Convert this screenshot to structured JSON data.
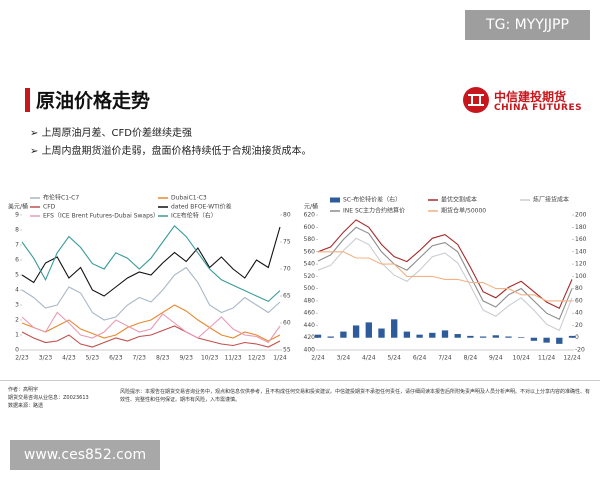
{
  "page": {
    "watermark_top": "TG: MYYJJPP",
    "title": "原油价格走势",
    "logo_cn": "中信建投期货",
    "logo_en": "CHINA FUTURES",
    "bullets": [
      "上周原油月差、CFD价差继续走强",
      "上周内盘期货溢价走弱，盘面价格持续低于合规油接货成本。"
    ],
    "footer_author": "作者：高明宇",
    "footer_license": "期货交易咨询从业信息：Z0023613",
    "footer_source": "数据来源：路透",
    "risk": "风险提示：本报告在期货交易咨询业务中，观点和信息仅供参考，且不构成任何交易和投资建议。中信建投期货不承担任何责任，请仔细阅读本报告后所附免责声明及人员分析声明。不对以上分享内容的准确性、有效性、完整性和任何保证。期市有风险，入市需谨慎。",
    "watermark_bottom": "www.ces852.com"
  },
  "chart_data": [
    {
      "type": "line",
      "ylabel": "美元/桶",
      "categories": [
        "2/23",
        null,
        "3/23",
        null,
        "4/23",
        null,
        "5/23",
        null,
        "6/23",
        null,
        "7/23",
        null,
        "8/23",
        null,
        "9/23",
        null,
        "10/23",
        null,
        "11/23",
        null,
        "12/23",
        null,
        "1/24"
      ],
      "ylim": [
        0,
        9
      ],
      "yticks": [
        0,
        1,
        2,
        3,
        4,
        5,
        6,
        7,
        8,
        9
      ],
      "y2lim": [
        55,
        80
      ],
      "y2ticks": [
        55,
        60,
        65,
        70,
        75,
        80
      ],
      "series": [
        {
          "name": "布伦特C1-C7",
          "color": "#a9b7c9",
          "values": [
            4,
            3.5,
            2.8,
            3,
            4.2,
            3.8,
            2.5,
            2,
            2.2,
            3,
            3.5,
            3.2,
            4,
            5,
            5.5,
            4.5,
            3,
            2.5,
            2.8,
            3.5,
            3,
            2.5,
            3.2
          ]
        },
        {
          "name": "DubaiC1-C3",
          "color": "#e8892e",
          "values": [
            1.8,
            1.5,
            1.2,
            1.6,
            2,
            1.4,
            1.1,
            0.8,
            1,
            1.5,
            1.8,
            2,
            2.5,
            3,
            2.6,
            2,
            1.5,
            1,
            0.8,
            1.2,
            1,
            0.6,
            1
          ]
        },
        {
          "name": "CFD",
          "color": "#c0504d",
          "values": [
            1.2,
            0.8,
            0.5,
            0.6,
            1,
            0.4,
            0.2,
            0.5,
            0.8,
            0.6,
            0.9,
            1,
            1.3,
            1.6,
            1.2,
            0.8,
            0.6,
            0.4,
            0.3,
            0.5,
            0.4,
            0.2,
            0.6
          ]
        },
        {
          "name": "dated BFOE-WTI价差",
          "color": "#111111",
          "values": [
            5,
            4.5,
            5.8,
            6.2,
            4.8,
            5.5,
            4,
            3.6,
            4.2,
            4.8,
            5.2,
            5,
            5.8,
            6.5,
            5.9,
            6.8,
            5.5,
            6.2,
            5.4,
            4.8,
            6,
            5.5,
            8.2
          ]
        },
        {
          "name": "EFS（ICE Brent Futures-Dubai Swaps）",
          "color": "#e89ab5",
          "values": [
            2.2,
            1.5,
            1.2,
            2.5,
            1.8,
            1,
            0.8,
            1.2,
            2,
            1.6,
            1.2,
            1.4,
            2.4,
            1.8,
            1.2,
            0.8,
            1.5,
            2.2,
            1.4,
            1,
            0.9,
            0.5,
            1.6
          ]
        },
        {
          "name": "ICE布伦特（右）",
          "color": "#3a9a9a",
          "axis": "y2",
          "values": [
            75,
            72,
            68,
            73,
            76,
            74,
            71,
            70,
            73,
            72,
            70,
            72,
            75,
            78,
            76,
            73,
            70,
            68,
            67,
            66,
            65,
            64,
            66
          ]
        }
      ]
    },
    {
      "type": "line",
      "ylabel": "元/桶",
      "categories": [
        "2/24",
        null,
        "3/24",
        null,
        "4/24",
        null,
        "5/24",
        null,
        "6/24",
        null,
        "7/24",
        null,
        "8/24",
        null,
        "9/24",
        null,
        "10/24",
        null,
        "11/24",
        null,
        "12/24"
      ],
      "ylim": [
        400,
        620
      ],
      "yticks": [
        400,
        420,
        440,
        460,
        480,
        500,
        520,
        540,
        560,
        580,
        600,
        620
      ],
      "y2lim": [
        -20,
        200
      ],
      "y2ticks": [
        -20,
        0,
        20,
        40,
        60,
        80,
        100,
        120,
        140,
        160,
        180,
        200
      ],
      "series": [
        {
          "name": "SC-布伦特价差（右）",
          "color": "#2e5c9a",
          "axis": "y2",
          "mark": "bar",
          "values": [
            5,
            2,
            10,
            20,
            25,
            15,
            30,
            10,
            5,
            8,
            12,
            6,
            3,
            2,
            4,
            2,
            1,
            -5,
            -8,
            -10,
            3
          ]
        },
        {
          "name": "最优交割成本",
          "color": "#a52a2a",
          "values": [
            560,
            568,
            592,
            612,
            600,
            572,
            552,
            544,
            562,
            582,
            588,
            572,
            535,
            495,
            485,
            502,
            512,
            495,
            478,
            468,
            515
          ]
        },
        {
          "name": "炼厂接货成本",
          "color": "#c9cdd4",
          "values": [
            530,
            538,
            562,
            582,
            572,
            542,
            522,
            512,
            530,
            552,
            558,
            542,
            505,
            465,
            455,
            472,
            485,
            465,
            442,
            432,
            485
          ]
        },
        {
          "name": "INE SC主力合约结算价",
          "color": "#8c8c8c",
          "values": [
            545,
            555,
            580,
            600,
            590,
            560,
            540,
            530,
            550,
            570,
            575,
            560,
            520,
            480,
            470,
            490,
            500,
            480,
            460,
            450,
            500
          ]
        },
        {
          "name": "期货仓单/50000",
          "color": "#f4b183",
          "axis": "y2",
          "values": [
            140,
            140,
            140,
            130,
            130,
            120,
            120,
            100,
            100,
            100,
            95,
            95,
            90,
            90,
            80,
            80,
            70,
            70,
            60,
            60,
            60
          ]
        }
      ]
    }
  ]
}
